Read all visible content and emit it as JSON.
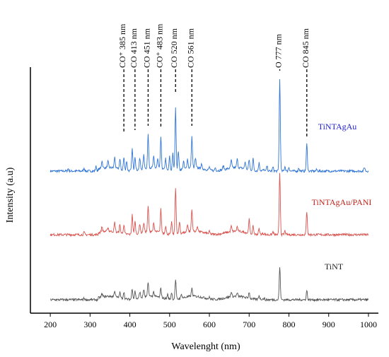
{
  "chart_data": {
    "type": "line",
    "title": "",
    "xlabel": "Wavelenght (nm)",
    "ylabel": "Intensity (a.u)",
    "xlim": [
      150,
      1025
    ],
    "x_ticks": [
      200,
      300,
      400,
      500,
      600,
      700,
      800,
      900,
      1000
    ],
    "grid": false,
    "legend": "inline labels at right",
    "series": [
      {
        "name": "TiNTAgAu",
        "color": "#2f75d6",
        "label_color": "#1f1fcf",
        "offset": 2.0,
        "peaks": [
          {
            "x": 245,
            "y": 0.03
          },
          {
            "x": 285,
            "y": 0.04
          },
          {
            "x": 315,
            "y": 0.06
          },
          {
            "x": 330,
            "y": 0.1
          },
          {
            "x": 345,
            "y": 0.08
          },
          {
            "x": 362,
            "y": 0.14
          },
          {
            "x": 375,
            "y": 0.13
          },
          {
            "x": 385,
            "y": 0.16
          },
          {
            "x": 392,
            "y": 0.12
          },
          {
            "x": 406,
            "y": 0.28
          },
          {
            "x": 413,
            "y": 0.18
          },
          {
            "x": 425,
            "y": 0.14
          },
          {
            "x": 435,
            "y": 0.17
          },
          {
            "x": 446,
            "y": 0.42
          },
          {
            "x": 460,
            "y": 0.14
          },
          {
            "x": 470,
            "y": 0.12
          },
          {
            "x": 478,
            "y": 0.4
          },
          {
            "x": 490,
            "y": 0.15
          },
          {
            "x": 500,
            "y": 0.18
          },
          {
            "x": 508,
            "y": 0.22
          },
          {
            "x": 515,
            "y": 0.8
          },
          {
            "x": 522,
            "y": 0.25
          },
          {
            "x": 535,
            "y": 0.1
          },
          {
            "x": 545,
            "y": 0.12
          },
          {
            "x": 556,
            "y": 0.4
          },
          {
            "x": 565,
            "y": 0.12
          },
          {
            "x": 580,
            "y": 0.05
          },
          {
            "x": 600,
            "y": 0.04
          },
          {
            "x": 615,
            "y": 0.04
          },
          {
            "x": 635,
            "y": 0.05
          },
          {
            "x": 655,
            "y": 0.1
          },
          {
            "x": 670,
            "y": 0.11
          },
          {
            "x": 690,
            "y": 0.09
          },
          {
            "x": 700,
            "y": 0.13
          },
          {
            "x": 710,
            "y": 0.15
          },
          {
            "x": 725,
            "y": 0.1
          },
          {
            "x": 745,
            "y": 0.06
          },
          {
            "x": 760,
            "y": 0.05
          },
          {
            "x": 777,
            "y": 1.18
          },
          {
            "x": 790,
            "y": 0.06
          },
          {
            "x": 800,
            "y": 0.05
          },
          {
            "x": 825,
            "y": 0.04
          },
          {
            "x": 845,
            "y": 0.35
          },
          {
            "x": 870,
            "y": 0.02
          },
          {
            "x": 990,
            "y": 0.05
          }
        ]
      },
      {
        "name": "TiNTAgAu/PANI",
        "color": "#d9534f",
        "label_color": "#c0241b",
        "offset": 1.0,
        "peaks": [
          {
            "x": 285,
            "y": 0.03
          },
          {
            "x": 330,
            "y": 0.07
          },
          {
            "x": 345,
            "y": 0.05
          },
          {
            "x": 362,
            "y": 0.12
          },
          {
            "x": 375,
            "y": 0.1
          },
          {
            "x": 385,
            "y": 0.11
          },
          {
            "x": 406,
            "y": 0.25
          },
          {
            "x": 413,
            "y": 0.16
          },
          {
            "x": 425,
            "y": 0.12
          },
          {
            "x": 435,
            "y": 0.12
          },
          {
            "x": 446,
            "y": 0.32
          },
          {
            "x": 460,
            "y": 0.1
          },
          {
            "x": 478,
            "y": 0.3
          },
          {
            "x": 490,
            "y": 0.1
          },
          {
            "x": 505,
            "y": 0.16
          },
          {
            "x": 515,
            "y": 0.6
          },
          {
            "x": 525,
            "y": 0.15
          },
          {
            "x": 545,
            "y": 0.1
          },
          {
            "x": 556,
            "y": 0.28
          },
          {
            "x": 570,
            "y": 0.07
          },
          {
            "x": 600,
            "y": 0.03
          },
          {
            "x": 655,
            "y": 0.07
          },
          {
            "x": 670,
            "y": 0.06
          },
          {
            "x": 700,
            "y": 0.18
          },
          {
            "x": 710,
            "y": 0.1
          },
          {
            "x": 725,
            "y": 0.07
          },
          {
            "x": 760,
            "y": 0.04
          },
          {
            "x": 777,
            "y": 0.8
          },
          {
            "x": 790,
            "y": 0.05
          },
          {
            "x": 845,
            "y": 0.3
          }
        ]
      },
      {
        "name": "TiNT",
        "color": "#555555",
        "label_color": "#222222",
        "offset": 0.0,
        "peaks": [
          {
            "x": 285,
            "y": 0.02
          },
          {
            "x": 330,
            "y": 0.04
          },
          {
            "x": 362,
            "y": 0.08
          },
          {
            "x": 375,
            "y": 0.07
          },
          {
            "x": 385,
            "y": 0.09
          },
          {
            "x": 406,
            "y": 0.14
          },
          {
            "x": 413,
            "y": 0.1
          },
          {
            "x": 425,
            "y": 0.08
          },
          {
            "x": 435,
            "y": 0.1
          },
          {
            "x": 446,
            "y": 0.18
          },
          {
            "x": 460,
            "y": 0.06
          },
          {
            "x": 478,
            "y": 0.12
          },
          {
            "x": 495,
            "y": 0.06
          },
          {
            "x": 505,
            "y": 0.09
          },
          {
            "x": 515,
            "y": 0.25
          },
          {
            "x": 530,
            "y": 0.05
          },
          {
            "x": 556,
            "y": 0.1
          },
          {
            "x": 600,
            "y": 0.02
          },
          {
            "x": 655,
            "y": 0.06
          },
          {
            "x": 670,
            "y": 0.04
          },
          {
            "x": 700,
            "y": 0.08
          },
          {
            "x": 725,
            "y": 0.05
          },
          {
            "x": 777,
            "y": 0.42
          },
          {
            "x": 845,
            "y": 0.12
          }
        ]
      }
    ],
    "annotations": [
      {
        "text": "CO⁺ 385 nm",
        "x": 385
      },
      {
        "text": "CO 413 nm",
        "x": 413
      },
      {
        "text": "CO 451 nm",
        "x": 446
      },
      {
        "text": "CO⁺ 483 nm",
        "x": 478
      },
      {
        "text": "CO 520 nm",
        "x": 515
      },
      {
        "text": "CO 561 nm",
        "x": 556
      },
      {
        "text": "O 777 nm",
        "x": 777
      },
      {
        "text": "CO 845 nm",
        "x": 845
      }
    ]
  }
}
